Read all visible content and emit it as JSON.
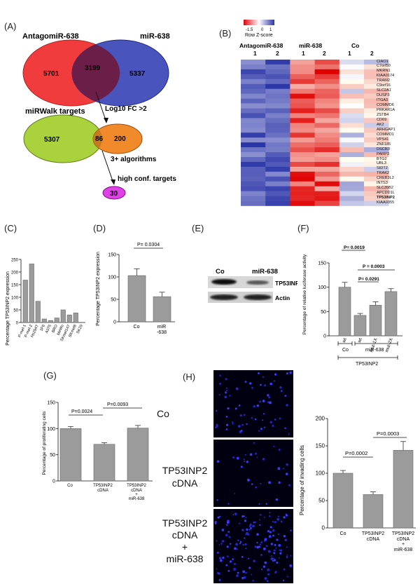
{
  "panels": {
    "A": "(A)",
    "B": "(B)",
    "C": "(C)",
    "D": "(D)",
    "E": "(E)",
    "F": "(F)",
    "G": "(G)",
    "H": "(H)"
  },
  "panel_a": {
    "antagomir_title": "AntagomiR-638",
    "mir_title": "miR-638",
    "antagomir_only": "5701",
    "overlap": "3199",
    "mir_only": "5337",
    "mirwalk_title": "miRWalk targets",
    "mirwalk_only": "5307",
    "overlap2": "86",
    "fc_only": "200",
    "fc_label": "Log10 FC >2",
    "algorithms_label": "3+ algorithms",
    "high_conf_label": "high conf. targets",
    "high_conf_value": "30",
    "colors": {
      "antagomir": "#f03c3c",
      "mir": "#3f4bb8",
      "mirwalk": "#a9d23c",
      "fc": "#f08a2a",
      "high": "#e040e8"
    }
  },
  "panel_b": {
    "scale_min": "-1.5",
    "scale_mid": "0",
    "scale_max": "1",
    "scale_title": "Row Z-score",
    "groups": [
      "AntagomiR-638",
      "miR-638",
      "Co"
    ],
    "group_cols": [
      "1",
      "2",
      "1",
      "2",
      "1",
      "2"
    ],
    "genes": [
      "CIAO1",
      "C7orf50",
      "MKRN1",
      "KIAA0174",
      "TRAM2",
      "C9orf16",
      "SLC2A1",
      "DUSP3",
      "ITGA3",
      "COMMD6",
      "PRKAR1A",
      "ZSTB4",
      "CD69",
      "AK2",
      "ARHGAP1",
      "COMMD1",
      "VPS41",
      "ZNF185",
      "DSCR3",
      "PARP3",
      "BTG2",
      "UBL3",
      "SIDT2",
      "TRAK2",
      "CREB3L2",
      "INTS3",
      "SLC35B2",
      "APCDD1L",
      "TP53INP2",
      "KIAA0355"
    ],
    "highlight_gene": "TP53INP2"
  },
  "panel_c": {
    "chart_data": {
      "type": "bar",
      "ylabel": "Percentage TP53INP2 expression",
      "categories": [
        "P-mel-1",
        "P-mel-2",
        "Hs294T",
        "1F6",
        "A375",
        "BRO",
        "MeWo",
        "SKmel147",
        "SKmel8",
        "SK29"
      ],
      "values": [
        168,
        232,
        84,
        14,
        8,
        18,
        50,
        30,
        38,
        0
      ],
      "ylim": [
        0,
        250
      ],
      "yticks": [
        "0",
        "50",
        "100",
        "150",
        "200",
        "250"
      ]
    }
  },
  "panel_d": {
    "chart_data": {
      "type": "bar",
      "ylabel": "Percentage TP53INP2 expression",
      "categories": [
        "Co",
        "miR\n-638"
      ],
      "values": [
        103,
        56
      ],
      "errors": [
        15,
        10
      ],
      "ylim": [
        0,
        150
      ],
      "yticks": [
        "0",
        "50",
        "100",
        "150"
      ],
      "pvalue": "P= 0.0304"
    },
    "cat_co": "Co",
    "cat_mir_1": "miR",
    "cat_mir_2": "-638"
  },
  "panel_e": {
    "col_co": "Co",
    "col_mir": "miR-638",
    "band1": "TP53INP2",
    "band2": "Actin"
  },
  "panel_f": {
    "chart_data": {
      "type": "bar",
      "ylabel": "Percentage of relative luciferase activity",
      "categories": [
        "wt",
        "wt",
        "mut-1X",
        "mut-2X"
      ],
      "values": [
        100,
        42,
        63,
        91
      ],
      "errors": [
        10,
        4,
        7,
        6
      ],
      "ylim": [
        0,
        150
      ],
      "yticks": [
        "0",
        "50",
        "100",
        "150"
      ],
      "pvalues": [
        "P= 0.0019",
        "P = 0.0003",
        "P= 0.0291"
      ]
    },
    "group_co": "Co",
    "group_mir": "miR-638",
    "group_gene": "TP53INP2"
  },
  "panel_g": {
    "chart_data": {
      "type": "bar",
      "ylabel": "Percentage of proliferating cells",
      "categories": [
        "Co",
        "TP53INP2 cDNA",
        "TP53INP2 cDNA + miR-638"
      ],
      "values": [
        100,
        70,
        101
      ],
      "errors": [
        4,
        3,
        5
      ],
      "ylim": [
        0,
        150
      ],
      "yticks": [
        "0",
        "50",
        "100",
        "150"
      ],
      "pvalues": [
        "P=0.0024",
        "P=0.0093"
      ]
    },
    "cat1": "Co",
    "cat2_1": "TP53INP2",
    "cat2_2": "cDNA",
    "cat3_1": "TP53INP2",
    "cat3_2": "cDNA",
    "cat3_3": "+",
    "cat3_4": "miR-638"
  },
  "panel_h": {
    "row1": "Co",
    "row2_1": "TP53INP2",
    "row2_2": "cDNA",
    "row3_1": "TP53INP2",
    "row3_2": "cDNA",
    "row3_3": "+",
    "row3_4": "miR-638",
    "chart_data": {
      "type": "bar",
      "ylabel": "Percentage of invading cells",
      "categories": [
        "Co",
        "TP53INP2 cDNA",
        "TP53INP2 cDNA + miR-638"
      ],
      "values": [
        100,
        61,
        142
      ],
      "errors": [
        5,
        5,
        16
      ],
      "ylim": [
        0,
        200
      ],
      "yticks": [
        "0",
        "50",
        "100",
        "150",
        "200"
      ],
      "pvalues": [
        "P=0.0002",
        "P=0.0003"
      ]
    },
    "cat1": "Co",
    "cat2_1": "TP53INP2",
    "cat2_2": "cDNA",
    "cat3_1": "TP53INP2",
    "cat3_2": "cDNA",
    "cat3_3": "+",
    "cat3_4": "miR-638"
  }
}
